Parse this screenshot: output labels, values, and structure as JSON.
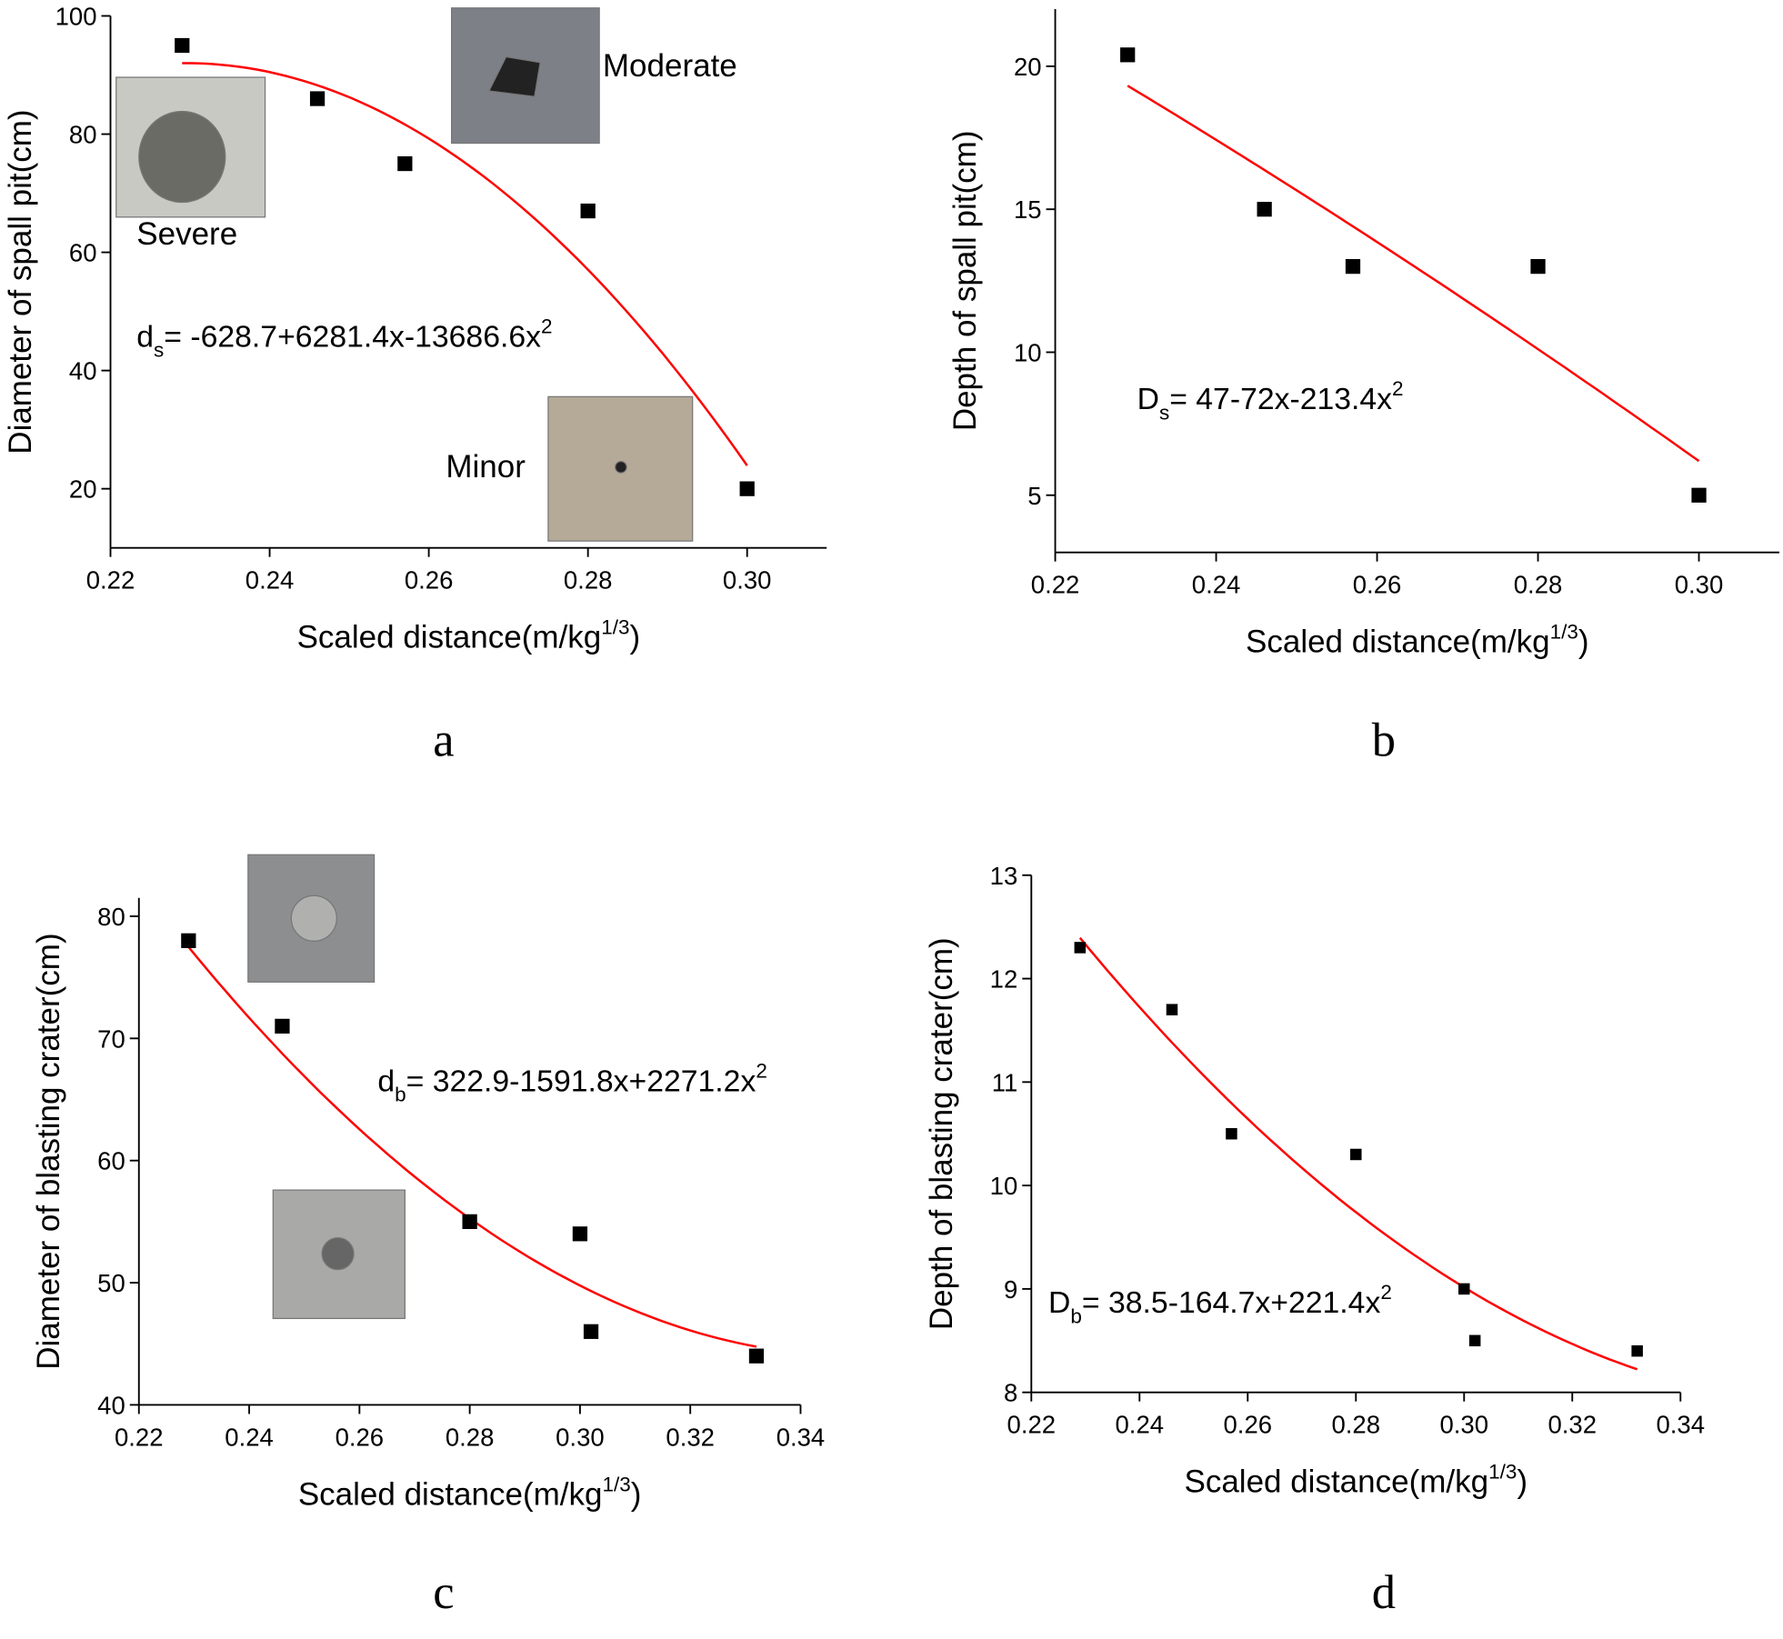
{
  "chart_data": [
    {
      "type": "scatter",
      "panel": "a",
      "xlabel": {
        "text": "Scaled distance(m/kg",
        "sup": "1/3",
        "tail": ")"
      },
      "ylabel": "Diameter of spall pit(cm)",
      "x": [
        0.229,
        0.246,
        0.257,
        0.28,
        0.3
      ],
      "values": [
        95,
        86,
        75,
        67,
        20
      ],
      "color": "#000000",
      "xlim": [
        0.22,
        0.31
      ],
      "ylim": [
        10,
        100
      ],
      "xticks": [
        0.22,
        0.24,
        0.26,
        0.28,
        {
          "value": 0.3,
          "label": "0.30"
        }
      ],
      "yticks": [
        20,
        40,
        60,
        80,
        100
      ],
      "fit": {
        "color": "#ff0000",
        "coefficients": [
          -628.7,
          6281.4,
          -13686.6
        ]
      },
      "equation": {
        "symbol": "d",
        "sub": "s",
        "body": "= -628.7+6281.4x-13686.6x",
        "sup": "2"
      },
      "annotations": [
        {
          "text": "Severe",
          "color": "#0000ff"
        },
        {
          "text": "Moderate",
          "color": "#0000ff"
        },
        {
          "text": "Minor",
          "color": "#0000ff"
        }
      ]
    },
    {
      "type": "scatter",
      "panel": "b",
      "xlabel": {
        "text": "Scaled distance(m/kg",
        "sup": "1/3",
        "tail": ")"
      },
      "ylabel": "Depth of spall pit(cm)",
      "x": [
        0.229,
        0.246,
        0.257,
        0.28,
        0.3
      ],
      "values": [
        20.4,
        15,
        13,
        13,
        5
      ],
      "color": "#000000",
      "xlim": [
        0.22,
        0.31
      ],
      "ylim": [
        3,
        22
      ],
      "xticks": [
        0.22,
        0.24,
        0.26,
        0.28,
        {
          "value": 0.3,
          "label": "0.30"
        }
      ],
      "yticks": [
        5,
        10,
        15,
        20
      ],
      "fit": {
        "color": "#ff0000",
        "coefficients": [
          47,
          -72,
          -213.4
        ]
      },
      "equation": {
        "symbol": "D",
        "sub": "s",
        "body": "= 47-72x-213.4x",
        "sup": "2"
      },
      "annotations": []
    },
    {
      "type": "scatter",
      "panel": "c",
      "xlabel": {
        "text": "Scaled distance(m/kg",
        "sup": "1/3",
        "tail": ")"
      },
      "ylabel": "Diameter of blasting crater(cm)",
      "x": [
        0.229,
        0.246,
        0.28,
        0.3,
        0.302,
        0.332
      ],
      "values": [
        78,
        71,
        55,
        54,
        46,
        44
      ],
      "color": "#000000",
      "xlim": [
        0.22,
        0.34
      ],
      "ylim": [
        40,
        81.5
      ],
      "xticks": [
        0.22,
        0.24,
        0.26,
        0.28,
        {
          "value": 0.3,
          "label": "0.30"
        },
        0.32,
        0.34
      ],
      "yticks": [
        40,
        50,
        60,
        70,
        80
      ],
      "fit": {
        "color": "#ff0000",
        "coefficients": [
          322.9,
          -1591.8,
          2271.2
        ]
      },
      "equation": {
        "symbol": "d",
        "sub": "b",
        "body": "= 322.9-1591.8x+2271.2x",
        "sup": "2"
      },
      "annotations": []
    },
    {
      "type": "scatter",
      "panel": "d",
      "xlabel": {
        "text": "Scaled distance(m/kg",
        "sup": "1/3",
        "tail": ")"
      },
      "ylabel": "Depth of blasting crater(cm)",
      "x": [
        0.229,
        0.246,
        0.257,
        0.28,
        0.3,
        0.302,
        0.332
      ],
      "values": [
        12.3,
        11.7,
        10.5,
        10.3,
        9,
        8.5,
        8.4
      ],
      "color": "#000000",
      "xlim": [
        0.22,
        0.34
      ],
      "ylim": [
        8,
        13
      ],
      "xticks": [
        0.22,
        0.24,
        0.26,
        0.28,
        {
          "value": 0.3,
          "label": "0.30"
        },
        0.32,
        0.34
      ],
      "yticks": [
        8,
        9,
        10,
        11,
        12,
        13
      ],
      "fit": {
        "color": "#ff0000",
        "coefficients": [
          38.5,
          -164.7,
          221.4
        ]
      },
      "equation": {
        "symbol": "D",
        "sub": "b",
        "body": "= 38.5-164.7x+221.4x",
        "sup": "2"
      },
      "annotations": []
    }
  ]
}
